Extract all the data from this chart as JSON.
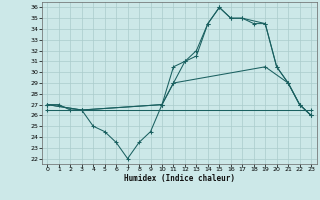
{
  "xlabel": "Humidex (Indice chaleur)",
  "ylabel": "",
  "bg_color": "#cce8e8",
  "grid_color": "#aacccc",
  "line_color": "#1a6060",
  "xlim": [
    -0.5,
    23.5
  ],
  "ylim": [
    21.5,
    36.5
  ],
  "xticks": [
    0,
    1,
    2,
    3,
    4,
    5,
    6,
    7,
    8,
    9,
    10,
    11,
    12,
    13,
    14,
    15,
    16,
    17,
    18,
    19,
    20,
    21,
    22,
    23
  ],
  "yticks": [
    22,
    23,
    24,
    25,
    26,
    27,
    28,
    29,
    30,
    31,
    32,
    33,
    34,
    35,
    36
  ],
  "series": [
    {
      "x": [
        0,
        1,
        2,
        3,
        10,
        11,
        12,
        13,
        14,
        15,
        16,
        17,
        18,
        19,
        20,
        21,
        22,
        23
      ],
      "y": [
        27,
        27,
        26.5,
        26.5,
        27,
        29,
        31,
        31.5,
        34.5,
        36,
        35,
        35,
        34.5,
        34.5,
        30.5,
        29,
        27,
        26
      ]
    },
    {
      "x": [
        0,
        3,
        4,
        5,
        6,
        7,
        8,
        9,
        10,
        11,
        12,
        13,
        14,
        15,
        16,
        17,
        19,
        20,
        21,
        22,
        23
      ],
      "y": [
        27,
        26.5,
        25,
        24.5,
        23.5,
        22,
        23.5,
        24.5,
        27,
        30.5,
        31,
        32,
        34.5,
        36,
        35,
        35,
        34.5,
        30.5,
        29,
        27,
        26
      ]
    },
    {
      "x": [
        0,
        23
      ],
      "y": [
        26.5,
        26.5
      ]
    },
    {
      "x": [
        0,
        3,
        10,
        11,
        19,
        21,
        22,
        23
      ],
      "y": [
        27,
        26.5,
        27,
        29,
        30.5,
        29,
        27,
        26
      ]
    }
  ]
}
